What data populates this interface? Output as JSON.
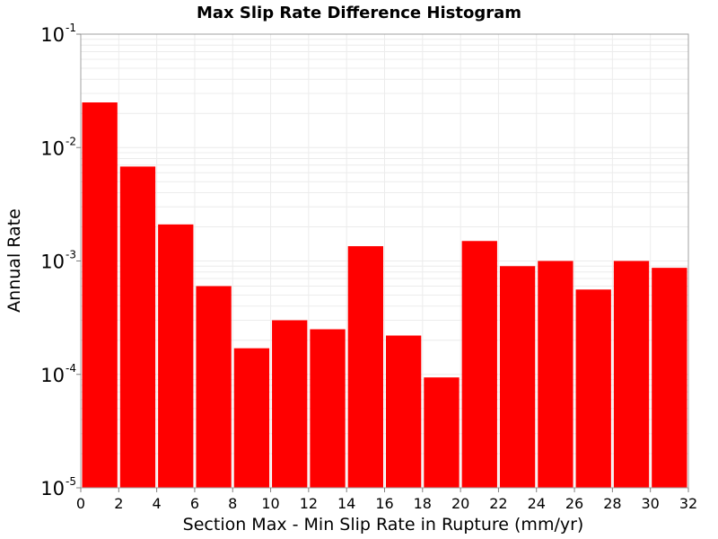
{
  "chart_data": {
    "type": "bar",
    "title": "Max Slip Rate Difference Histogram",
    "xlabel": "Section Max - Min Slip Rate in Rupture (mm/yr)",
    "ylabel": "Annual Rate",
    "xlim": [
      0,
      32
    ],
    "ylim": [
      1e-05,
      0.1
    ],
    "yscale": "log",
    "grid": true,
    "color": "#ff0000",
    "x_ticks": [
      "0",
      "2",
      "4",
      "6",
      "8",
      "10",
      "12",
      "14",
      "16",
      "18",
      "20",
      "22",
      "24",
      "26",
      "28",
      "30",
      "32"
    ],
    "y_ticks": [
      {
        "base": "10",
        "exp": "-5"
      },
      {
        "base": "10",
        "exp": "-4"
      },
      {
        "base": "10",
        "exp": "-3"
      },
      {
        "base": "10",
        "exp": "-2"
      },
      {
        "base": "10",
        "exp": "-1"
      }
    ],
    "bins": [
      {
        "x0": 0,
        "x1": 2,
        "value": 0.025
      },
      {
        "x0": 2,
        "x1": 4,
        "value": 0.0068
      },
      {
        "x0": 4,
        "x1": 6,
        "value": 0.0021
      },
      {
        "x0": 6,
        "x1": 8,
        "value": 0.0006
      },
      {
        "x0": 8,
        "x1": 10,
        "value": 0.00017
      },
      {
        "x0": 10,
        "x1": 12,
        "value": 0.0003
      },
      {
        "x0": 12,
        "x1": 14,
        "value": 0.00025
      },
      {
        "x0": 14,
        "x1": 16,
        "value": 0.00135
      },
      {
        "x0": 16,
        "x1": 18,
        "value": 0.00022
      },
      {
        "x0": 18,
        "x1": 20,
        "value": 9.4e-05
      },
      {
        "x0": 20,
        "x1": 22,
        "value": 0.0015
      },
      {
        "x0": 22,
        "x1": 24,
        "value": 0.0009
      },
      {
        "x0": 24,
        "x1": 26,
        "value": 0.001
      },
      {
        "x0": 26,
        "x1": 28,
        "value": 0.00056
      },
      {
        "x0": 28,
        "x1": 30,
        "value": 0.001
      },
      {
        "x0": 30,
        "x1": 32,
        "value": 0.00087
      }
    ]
  }
}
